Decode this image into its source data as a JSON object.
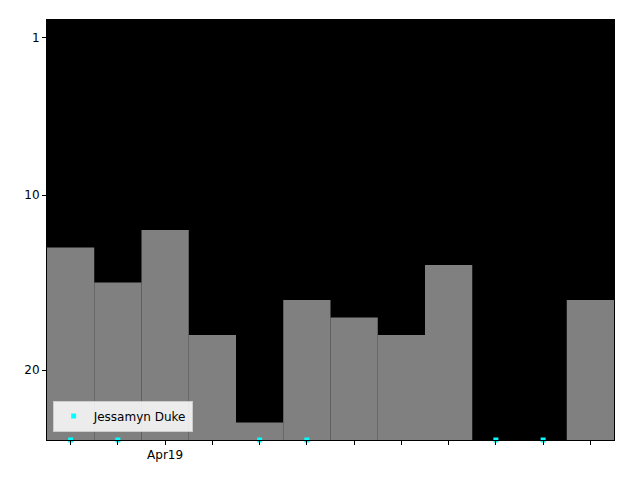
{
  "chart_data": {
    "type": "bar",
    "categories": [
      null,
      null,
      "Apr19",
      null,
      null,
      null,
      null,
      null,
      null,
      null,
      null,
      null
    ],
    "series": [
      {
        "type": "bar",
        "color": "#808080",
        "values": [
          13,
          15,
          12,
          18,
          23,
          16,
          17,
          18,
          14,
          null,
          null,
          16
        ]
      },
      {
        "name": "Jessamyn Duke",
        "type": "scatter",
        "marker": "square",
        "color": "#00ffff",
        "values": [
          24,
          24,
          null,
          null,
          24,
          24,
          null,
          null,
          null,
          24,
          24,
          null
        ]
      }
    ],
    "ylim": [
      24,
      0
    ],
    "yticks": [
      1,
      10,
      20
    ],
    "grid": false,
    "legend": "lower left"
  }
}
